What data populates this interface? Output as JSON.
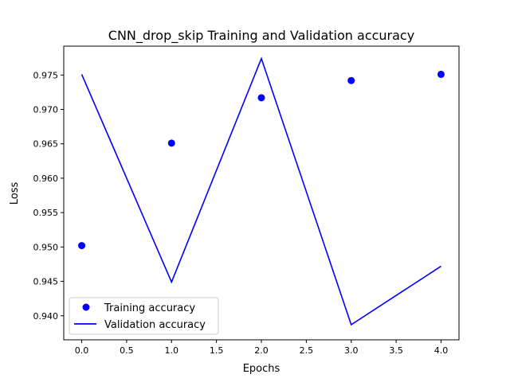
{
  "chart_data": {
    "type": "line",
    "title": "CNN_drop_skip Training and Validation accuracy",
    "xlabel": "Epochs",
    "ylabel": "Loss",
    "xlim": [
      -0.2,
      4.2
    ],
    "ylim": [
      0.9365,
      0.9792
    ],
    "xticks": [
      0.0,
      0.5,
      1.0,
      1.5,
      2.0,
      2.5,
      3.0,
      3.5,
      4.0
    ],
    "xtick_labels": [
      "0.0",
      "0.5",
      "1.0",
      "1.5",
      "2.0",
      "2.5",
      "3.0",
      "3.5",
      "4.0"
    ],
    "yticks": [
      0.94,
      0.945,
      0.95,
      0.955,
      0.96,
      0.965,
      0.97,
      0.975
    ],
    "ytick_labels": [
      "0.940",
      "0.945",
      "0.950",
      "0.955",
      "0.960",
      "0.965",
      "0.970",
      "0.975"
    ],
    "grid": false,
    "legend_position": "lower-left",
    "x": [
      0,
      1,
      2,
      3,
      4
    ],
    "series": [
      {
        "name": "Training accuracy",
        "style": "markers",
        "color": "#0000ff",
        "values": [
          0.9502,
          0.9651,
          0.9717,
          0.9742,
          0.9751
        ]
      },
      {
        "name": "Validation accuracy",
        "style": "line",
        "color": "#0000ff",
        "values": [
          0.9751,
          0.9449,
          0.9774,
          0.9387,
          0.9472
        ]
      }
    ]
  }
}
